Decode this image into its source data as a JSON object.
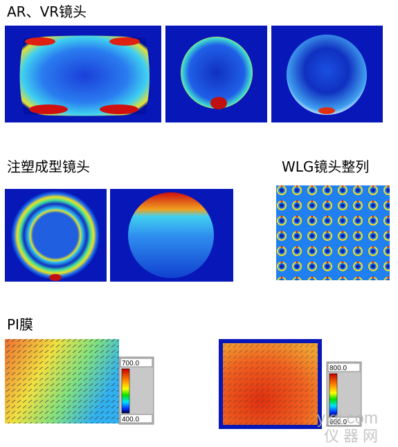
{
  "sections": [
    {
      "title": "AR、VR镜头"
    },
    {
      "title": "注塑成型镜头"
    },
    {
      "title": "WLG镜头整列"
    },
    {
      "title": "PI膜",
      "colorbars": [
        {
          "max": "700.0",
          "min": "400.0"
        },
        {
          "max": "800.0",
          "min": "600.0"
        }
      ]
    }
  ],
  "watermark": {
    "site": "yiqi.com",
    "brand": "仪器网"
  }
}
